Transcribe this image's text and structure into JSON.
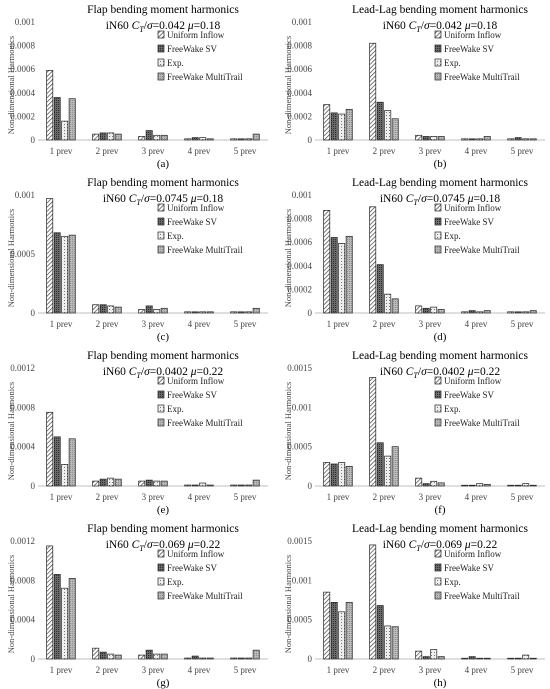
{
  "legend_labels": [
    "Uniform Inflow",
    "FreeWake SV",
    "Exp.",
    "FreeWake MultiTrail"
  ],
  "colors": {
    "axis": "#bfbfbf",
    "bar_stroke": "#222222",
    "text": "#000000",
    "frame": "#c8c8c8"
  },
  "chart_data": [
    {
      "type": "bar",
      "panel": "(a)",
      "title": "Flap bending moment harmonics",
      "subtitle": "iN60 C_T/σ=0.042 μ=0.18",
      "ylabel": "Non-dimensional Harmonics",
      "categories": [
        "1 prev",
        "2 prev",
        "3 prev",
        "4 prev",
        "5 prev"
      ],
      "ylim": [
        0,
        0.001
      ],
      "yticks": [
        "0",
        "0.0002",
        "0.0004",
        "0.0006",
        "0.0008",
        "0.001"
      ],
      "series": [
        {
          "name": "Uniform Inflow",
          "values": [
            0.00059,
            5e-05,
            3e-05,
            1e-05,
            1e-05
          ]
        },
        {
          "name": "FreeWake SV",
          "values": [
            0.00036,
            6e-05,
            8e-05,
            2e-05,
            1e-05
          ]
        },
        {
          "name": "Exp.",
          "values": [
            0.00016,
            6e-05,
            4e-05,
            2e-05,
            1e-05
          ]
        },
        {
          "name": "FreeWake MultiTrail",
          "values": [
            0.00035,
            5e-05,
            4e-05,
            1e-05,
            5e-05
          ]
        }
      ]
    },
    {
      "type": "bar",
      "panel": "(b)",
      "title": "Lead-Lag bending moment harmonics",
      "subtitle": "iN60 C_T/σ=0.042 μ=0.18",
      "ylabel": "Non-dimensional Harmonics",
      "categories": [
        "1 prev",
        "2 prev",
        "3 prev",
        "4 prev",
        "5 prev"
      ],
      "ylim": [
        0,
        0.001
      ],
      "yticks": [
        "0",
        "0.0002",
        "0.0004",
        "0.0006",
        "0.0008",
        "0.001"
      ],
      "series": [
        {
          "name": "Uniform Inflow",
          "values": [
            0.0003,
            0.00082,
            4e-05,
            1e-05,
            1e-05
          ]
        },
        {
          "name": "FreeWake SV",
          "values": [
            0.00023,
            0.00032,
            3e-05,
            1e-05,
            2e-05
          ]
        },
        {
          "name": "Exp.",
          "values": [
            0.00022,
            0.00025,
            3e-05,
            1e-05,
            1e-05
          ]
        },
        {
          "name": "FreeWake MultiTrail",
          "values": [
            0.00026,
            0.00018,
            3e-05,
            3e-05,
            1e-05
          ]
        }
      ]
    },
    {
      "type": "bar",
      "panel": "(c)",
      "title": "Flap bending moment harmonics",
      "subtitle": "iN60 C_T/σ=0.0745 μ=0.18",
      "ylabel": "Non-dimensional Harmonics",
      "categories": [
        "1 prev",
        "2 prev",
        "3 prev",
        "4 prev",
        "5 prev"
      ],
      "ylim": [
        0,
        0.001
      ],
      "yticks": [
        "0",
        "",
        "0.0005",
        "",
        "0.001"
      ],
      "series": [
        {
          "name": "Uniform Inflow",
          "values": [
            0.00097,
            7e-05,
            3e-05,
            1e-05,
            1e-05
          ]
        },
        {
          "name": "FreeWake SV",
          "values": [
            0.00068,
            7e-05,
            6e-05,
            1e-05,
            1e-05
          ]
        },
        {
          "name": "Exp.",
          "values": [
            0.00065,
            6e-05,
            3e-05,
            1e-05,
            1e-05
          ]
        },
        {
          "name": "FreeWake MultiTrail",
          "values": [
            0.00066,
            5e-05,
            4e-05,
            1e-05,
            4e-05
          ]
        }
      ]
    },
    {
      "type": "bar",
      "panel": "(d)",
      "title": "Lead-Lag bending moment harmonics",
      "subtitle": "iN60 C_T/σ=0.0745 μ=0.18",
      "ylabel": "Non-dimensional Harmonics",
      "categories": [
        "1 prev",
        "2 prev",
        "3 prev",
        "4 prev",
        "5 prev"
      ],
      "ylim": [
        0,
        0.001
      ],
      "yticks": [
        "0",
        "0.0002",
        "0.0004",
        "0.0006",
        "0.0008",
        "0.001"
      ],
      "series": [
        {
          "name": "Uniform Inflow",
          "values": [
            0.00087,
            0.0009,
            6e-05,
            1e-05,
            1e-05
          ]
        },
        {
          "name": "FreeWake SV",
          "values": [
            0.00064,
            0.00041,
            4e-05,
            2e-05,
            1e-05
          ]
        },
        {
          "name": "Exp.",
          "values": [
            0.00059,
            0.00016,
            5e-05,
            1e-05,
            1e-05
          ]
        },
        {
          "name": "FreeWake MultiTrail",
          "values": [
            0.00065,
            0.00012,
            3e-05,
            2e-05,
            2e-05
          ]
        }
      ]
    },
    {
      "type": "bar",
      "panel": "(e)",
      "title": "Flap bending moment harmonics",
      "subtitle": "iN60 C_T/σ=0.0402 μ=0.22",
      "ylabel": "Non-dimensional Harmonics",
      "categories": [
        "1 prev",
        "2 prev",
        "3 prev",
        "4 prev",
        "5 prev"
      ],
      "ylim": [
        0,
        0.0012
      ],
      "yticks": [
        "0",
        "0.0004",
        "0.0008",
        "0.0012"
      ],
      "series": [
        {
          "name": "Uniform Inflow",
          "values": [
            0.00075,
            5e-05,
            5e-05,
            1e-05,
            1e-05
          ]
        },
        {
          "name": "FreeWake SV",
          "values": [
            0.0005,
            7e-05,
            6e-05,
            1e-05,
            1e-05
          ]
        },
        {
          "name": "Exp.",
          "values": [
            0.00022,
            8e-05,
            5e-05,
            3e-05,
            1e-05
          ]
        },
        {
          "name": "FreeWake MultiTrail",
          "values": [
            0.00048,
            7e-05,
            5e-05,
            1e-05,
            6e-05
          ]
        }
      ]
    },
    {
      "type": "bar",
      "panel": "(f)",
      "title": "Lead-Lag bending moment harmonics",
      "subtitle": "iN60 C_T/σ=0.0402 μ=0.22",
      "ylabel": "Non-dimensional Harmonics",
      "categories": [
        "1 prev",
        "2 prev",
        "3 prev",
        "4 prev",
        "5 prev"
      ],
      "ylim": [
        0,
        0.0015
      ],
      "yticks": [
        "0",
        "0.0005",
        "0.001",
        "0.0015"
      ],
      "series": [
        {
          "name": "Uniform Inflow",
          "values": [
            0.0003,
            0.00138,
            0.0001,
            1e-05,
            1e-05
          ]
        },
        {
          "name": "FreeWake SV",
          "values": [
            0.00028,
            0.00055,
            3e-05,
            1e-05,
            1e-05
          ]
        },
        {
          "name": "Exp.",
          "values": [
            0.0003,
            0.00038,
            6e-05,
            3e-05,
            3e-05
          ]
        },
        {
          "name": "FreeWake MultiTrail",
          "values": [
            0.00025,
            0.0005,
            4e-05,
            2e-05,
            1e-05
          ]
        }
      ]
    },
    {
      "type": "bar",
      "panel": "(g)",
      "title": "Flap bending moment harmonics",
      "subtitle": "iN60 C_T/σ=0.069 μ=0.22",
      "ylabel": "Non-dimensional Harmonics",
      "categories": [
        "1 prev",
        "2 prev",
        "3 prev",
        "4 prev",
        "5 prev"
      ],
      "ylim": [
        0,
        0.0012
      ],
      "yticks": [
        "0",
        "0.0004",
        "0.0008",
        "0.0012"
      ],
      "series": [
        {
          "name": "Uniform Inflow",
          "values": [
            0.00115,
            0.00011,
            4e-05,
            1e-05,
            1e-05
          ]
        },
        {
          "name": "FreeWake SV",
          "values": [
            0.00086,
            7e-05,
            9e-05,
            3e-05,
            1e-05
          ]
        },
        {
          "name": "Exp.",
          "values": [
            0.00072,
            5e-05,
            5e-05,
            1e-05,
            1e-05
          ]
        },
        {
          "name": "FreeWake MultiTrail",
          "values": [
            0.00082,
            4e-05,
            5e-05,
            1e-05,
            9e-05
          ]
        }
      ]
    },
    {
      "type": "bar",
      "panel": "(h)",
      "title": "Lead-Lag bending moment harmonics",
      "subtitle": "iN60 C_T/σ=0.069 μ=0.22",
      "ylabel": "Non-dimensional Harmonics",
      "categories": [
        "1 prev",
        "2 prev",
        "3 prev",
        "4 prev",
        "5 prev"
      ],
      "ylim": [
        0,
        0.0015
      ],
      "yticks": [
        "0",
        "0.0005",
        "0.001",
        "0.0015"
      ],
      "series": [
        {
          "name": "Uniform Inflow",
          "values": [
            0.00085,
            0.00145,
            0.0001,
            1e-05,
            1e-05
          ]
        },
        {
          "name": "FreeWake SV",
          "values": [
            0.00072,
            0.00068,
            3e-05,
            3e-05,
            1e-05
          ]
        },
        {
          "name": "Exp.",
          "values": [
            0.0006,
            0.00042,
            0.00012,
            1e-05,
            5e-05
          ]
        },
        {
          "name": "FreeWake MultiTrail",
          "values": [
            0.00072,
            0.00041,
            3e-05,
            1e-05,
            1e-05
          ]
        }
      ]
    }
  ]
}
